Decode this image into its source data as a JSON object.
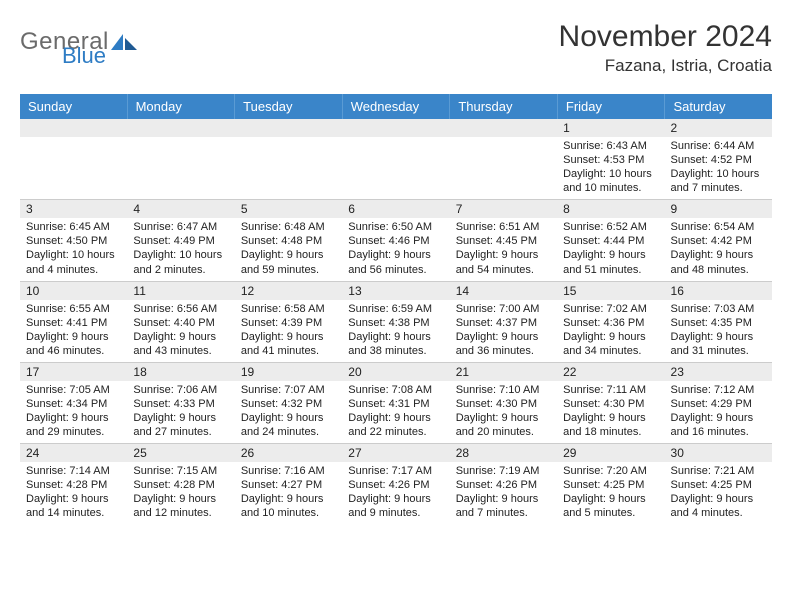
{
  "brand": {
    "word1": "General",
    "word2": "Blue"
  },
  "title": "November 2024",
  "location": "Fazana, Istria, Croatia",
  "colors": {
    "header_bg": "#3a85c9",
    "grid_line": "#cccccc",
    "daynum_bg": "#ececec",
    "text": "#222222",
    "brand_grey": "#6b6b6b",
    "brand_blue": "#2e7cc4"
  },
  "day_labels": [
    "Sunday",
    "Monday",
    "Tuesday",
    "Wednesday",
    "Thursday",
    "Friday",
    "Saturday"
  ],
  "weeks": [
    [
      {
        "n": "",
        "sr": "",
        "ss": "",
        "dl": ""
      },
      {
        "n": "",
        "sr": "",
        "ss": "",
        "dl": ""
      },
      {
        "n": "",
        "sr": "",
        "ss": "",
        "dl": ""
      },
      {
        "n": "",
        "sr": "",
        "ss": "",
        "dl": ""
      },
      {
        "n": "",
        "sr": "",
        "ss": "",
        "dl": ""
      },
      {
        "n": "1",
        "sr": "Sunrise: 6:43 AM",
        "ss": "Sunset: 4:53 PM",
        "dl": "Daylight: 10 hours and 10 minutes."
      },
      {
        "n": "2",
        "sr": "Sunrise: 6:44 AM",
        "ss": "Sunset: 4:52 PM",
        "dl": "Daylight: 10 hours and 7 minutes."
      }
    ],
    [
      {
        "n": "3",
        "sr": "Sunrise: 6:45 AM",
        "ss": "Sunset: 4:50 PM",
        "dl": "Daylight: 10 hours and 4 minutes."
      },
      {
        "n": "4",
        "sr": "Sunrise: 6:47 AM",
        "ss": "Sunset: 4:49 PM",
        "dl": "Daylight: 10 hours and 2 minutes."
      },
      {
        "n": "5",
        "sr": "Sunrise: 6:48 AM",
        "ss": "Sunset: 4:48 PM",
        "dl": "Daylight: 9 hours and 59 minutes."
      },
      {
        "n": "6",
        "sr": "Sunrise: 6:50 AM",
        "ss": "Sunset: 4:46 PM",
        "dl": "Daylight: 9 hours and 56 minutes."
      },
      {
        "n": "7",
        "sr": "Sunrise: 6:51 AM",
        "ss": "Sunset: 4:45 PM",
        "dl": "Daylight: 9 hours and 54 minutes."
      },
      {
        "n": "8",
        "sr": "Sunrise: 6:52 AM",
        "ss": "Sunset: 4:44 PM",
        "dl": "Daylight: 9 hours and 51 minutes."
      },
      {
        "n": "9",
        "sr": "Sunrise: 6:54 AM",
        "ss": "Sunset: 4:42 PM",
        "dl": "Daylight: 9 hours and 48 minutes."
      }
    ],
    [
      {
        "n": "10",
        "sr": "Sunrise: 6:55 AM",
        "ss": "Sunset: 4:41 PM",
        "dl": "Daylight: 9 hours and 46 minutes."
      },
      {
        "n": "11",
        "sr": "Sunrise: 6:56 AM",
        "ss": "Sunset: 4:40 PM",
        "dl": "Daylight: 9 hours and 43 minutes."
      },
      {
        "n": "12",
        "sr": "Sunrise: 6:58 AM",
        "ss": "Sunset: 4:39 PM",
        "dl": "Daylight: 9 hours and 41 minutes."
      },
      {
        "n": "13",
        "sr": "Sunrise: 6:59 AM",
        "ss": "Sunset: 4:38 PM",
        "dl": "Daylight: 9 hours and 38 minutes."
      },
      {
        "n": "14",
        "sr": "Sunrise: 7:00 AM",
        "ss": "Sunset: 4:37 PM",
        "dl": "Daylight: 9 hours and 36 minutes."
      },
      {
        "n": "15",
        "sr": "Sunrise: 7:02 AM",
        "ss": "Sunset: 4:36 PM",
        "dl": "Daylight: 9 hours and 34 minutes."
      },
      {
        "n": "16",
        "sr": "Sunrise: 7:03 AM",
        "ss": "Sunset: 4:35 PM",
        "dl": "Daylight: 9 hours and 31 minutes."
      }
    ],
    [
      {
        "n": "17",
        "sr": "Sunrise: 7:05 AM",
        "ss": "Sunset: 4:34 PM",
        "dl": "Daylight: 9 hours and 29 minutes."
      },
      {
        "n": "18",
        "sr": "Sunrise: 7:06 AM",
        "ss": "Sunset: 4:33 PM",
        "dl": "Daylight: 9 hours and 27 minutes."
      },
      {
        "n": "19",
        "sr": "Sunrise: 7:07 AM",
        "ss": "Sunset: 4:32 PM",
        "dl": "Daylight: 9 hours and 24 minutes."
      },
      {
        "n": "20",
        "sr": "Sunrise: 7:08 AM",
        "ss": "Sunset: 4:31 PM",
        "dl": "Daylight: 9 hours and 22 minutes."
      },
      {
        "n": "21",
        "sr": "Sunrise: 7:10 AM",
        "ss": "Sunset: 4:30 PM",
        "dl": "Daylight: 9 hours and 20 minutes."
      },
      {
        "n": "22",
        "sr": "Sunrise: 7:11 AM",
        "ss": "Sunset: 4:30 PM",
        "dl": "Daylight: 9 hours and 18 minutes."
      },
      {
        "n": "23",
        "sr": "Sunrise: 7:12 AM",
        "ss": "Sunset: 4:29 PM",
        "dl": "Daylight: 9 hours and 16 minutes."
      }
    ],
    [
      {
        "n": "24",
        "sr": "Sunrise: 7:14 AM",
        "ss": "Sunset: 4:28 PM",
        "dl": "Daylight: 9 hours and 14 minutes."
      },
      {
        "n": "25",
        "sr": "Sunrise: 7:15 AM",
        "ss": "Sunset: 4:28 PM",
        "dl": "Daylight: 9 hours and 12 minutes."
      },
      {
        "n": "26",
        "sr": "Sunrise: 7:16 AM",
        "ss": "Sunset: 4:27 PM",
        "dl": "Daylight: 9 hours and 10 minutes."
      },
      {
        "n": "27",
        "sr": "Sunrise: 7:17 AM",
        "ss": "Sunset: 4:26 PM",
        "dl": "Daylight: 9 hours and 9 minutes."
      },
      {
        "n": "28",
        "sr": "Sunrise: 7:19 AM",
        "ss": "Sunset: 4:26 PM",
        "dl": "Daylight: 9 hours and 7 minutes."
      },
      {
        "n": "29",
        "sr": "Sunrise: 7:20 AM",
        "ss": "Sunset: 4:25 PM",
        "dl": "Daylight: 9 hours and 5 minutes."
      },
      {
        "n": "30",
        "sr": "Sunrise: 7:21 AM",
        "ss": "Sunset: 4:25 PM",
        "dl": "Daylight: 9 hours and 4 minutes."
      }
    ]
  ]
}
